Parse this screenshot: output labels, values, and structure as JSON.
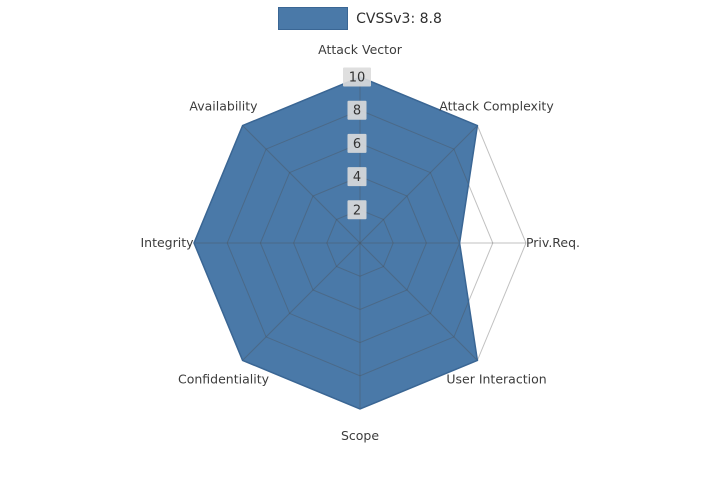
{
  "legend": {
    "label": "CVSSv3: 8.8",
    "swatch_color": "#4a79a8",
    "swatch_border_color": "#3a6694"
  },
  "colors": {
    "fill": "#4a79a8",
    "edge": "#3a6694",
    "grid": "#4d4d4d",
    "axis_label": "#3c3c3c",
    "tick_text": "#333333",
    "tick_box": "#dcdcdc",
    "background": "#ffffff"
  },
  "chart_data": {
    "type": "radar",
    "title": "",
    "series_name": "CVSSv3: 8.8",
    "categories": [
      "Attack Vector",
      "Attack Complexity",
      "Priv.Req.",
      "User Interaction",
      "Scope",
      "Confidentiality",
      "Integrity",
      "Availability"
    ],
    "values": [
      10,
      10,
      6,
      10,
      10,
      10,
      10,
      10
    ],
    "rlim": [
      0,
      10
    ],
    "ticks": [
      2,
      4,
      6,
      8,
      10
    ],
    "grid": true,
    "legend_position": "top-center",
    "start_axis": "top",
    "direction": "clockwise"
  }
}
